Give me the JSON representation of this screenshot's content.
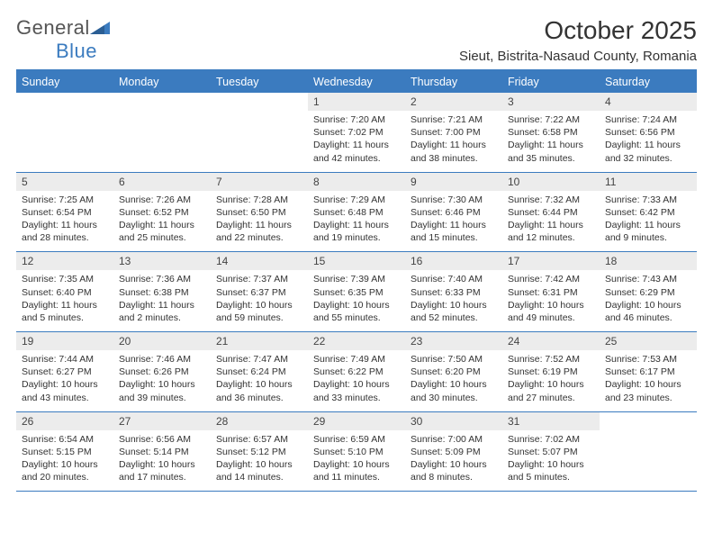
{
  "logo": {
    "word1": "General",
    "word2": "Blue"
  },
  "title": "October 2025",
  "subtitle": "Sieut, Bistrita-Nasaud County, Romania",
  "colors": {
    "accent": "#3b7bbf",
    "header_bg": "#3b7bbf",
    "header_text": "#ffffff",
    "daynum_bg": "#ececec",
    "body_text": "#333333",
    "background": "#ffffff"
  },
  "weekdays": [
    "Sunday",
    "Monday",
    "Tuesday",
    "Wednesday",
    "Thursday",
    "Friday",
    "Saturday"
  ],
  "weeks": [
    [
      null,
      null,
      null,
      {
        "n": "1",
        "sr": "7:20 AM",
        "ss": "7:02 PM",
        "dl": "11 hours and 42 minutes."
      },
      {
        "n": "2",
        "sr": "7:21 AM",
        "ss": "7:00 PM",
        "dl": "11 hours and 38 minutes."
      },
      {
        "n": "3",
        "sr": "7:22 AM",
        "ss": "6:58 PM",
        "dl": "11 hours and 35 minutes."
      },
      {
        "n": "4",
        "sr": "7:24 AM",
        "ss": "6:56 PM",
        "dl": "11 hours and 32 minutes."
      }
    ],
    [
      {
        "n": "5",
        "sr": "7:25 AM",
        "ss": "6:54 PM",
        "dl": "11 hours and 28 minutes."
      },
      {
        "n": "6",
        "sr": "7:26 AM",
        "ss": "6:52 PM",
        "dl": "11 hours and 25 minutes."
      },
      {
        "n": "7",
        "sr": "7:28 AM",
        "ss": "6:50 PM",
        "dl": "11 hours and 22 minutes."
      },
      {
        "n": "8",
        "sr": "7:29 AM",
        "ss": "6:48 PM",
        "dl": "11 hours and 19 minutes."
      },
      {
        "n": "9",
        "sr": "7:30 AM",
        "ss": "6:46 PM",
        "dl": "11 hours and 15 minutes."
      },
      {
        "n": "10",
        "sr": "7:32 AM",
        "ss": "6:44 PM",
        "dl": "11 hours and 12 minutes."
      },
      {
        "n": "11",
        "sr": "7:33 AM",
        "ss": "6:42 PM",
        "dl": "11 hours and 9 minutes."
      }
    ],
    [
      {
        "n": "12",
        "sr": "7:35 AM",
        "ss": "6:40 PM",
        "dl": "11 hours and 5 minutes."
      },
      {
        "n": "13",
        "sr": "7:36 AM",
        "ss": "6:38 PM",
        "dl": "11 hours and 2 minutes."
      },
      {
        "n": "14",
        "sr": "7:37 AM",
        "ss": "6:37 PM",
        "dl": "10 hours and 59 minutes."
      },
      {
        "n": "15",
        "sr": "7:39 AM",
        "ss": "6:35 PM",
        "dl": "10 hours and 55 minutes."
      },
      {
        "n": "16",
        "sr": "7:40 AM",
        "ss": "6:33 PM",
        "dl": "10 hours and 52 minutes."
      },
      {
        "n": "17",
        "sr": "7:42 AM",
        "ss": "6:31 PM",
        "dl": "10 hours and 49 minutes."
      },
      {
        "n": "18",
        "sr": "7:43 AM",
        "ss": "6:29 PM",
        "dl": "10 hours and 46 minutes."
      }
    ],
    [
      {
        "n": "19",
        "sr": "7:44 AM",
        "ss": "6:27 PM",
        "dl": "10 hours and 43 minutes."
      },
      {
        "n": "20",
        "sr": "7:46 AM",
        "ss": "6:26 PM",
        "dl": "10 hours and 39 minutes."
      },
      {
        "n": "21",
        "sr": "7:47 AM",
        "ss": "6:24 PM",
        "dl": "10 hours and 36 minutes."
      },
      {
        "n": "22",
        "sr": "7:49 AM",
        "ss": "6:22 PM",
        "dl": "10 hours and 33 minutes."
      },
      {
        "n": "23",
        "sr": "7:50 AM",
        "ss": "6:20 PM",
        "dl": "10 hours and 30 minutes."
      },
      {
        "n": "24",
        "sr": "7:52 AM",
        "ss": "6:19 PM",
        "dl": "10 hours and 27 minutes."
      },
      {
        "n": "25",
        "sr": "7:53 AM",
        "ss": "6:17 PM",
        "dl": "10 hours and 23 minutes."
      }
    ],
    [
      {
        "n": "26",
        "sr": "6:54 AM",
        "ss": "5:15 PM",
        "dl": "10 hours and 20 minutes."
      },
      {
        "n": "27",
        "sr": "6:56 AM",
        "ss": "5:14 PM",
        "dl": "10 hours and 17 minutes."
      },
      {
        "n": "28",
        "sr": "6:57 AM",
        "ss": "5:12 PM",
        "dl": "10 hours and 14 minutes."
      },
      {
        "n": "29",
        "sr": "6:59 AM",
        "ss": "5:10 PM",
        "dl": "10 hours and 11 minutes."
      },
      {
        "n": "30",
        "sr": "7:00 AM",
        "ss": "5:09 PM",
        "dl": "10 hours and 8 minutes."
      },
      {
        "n": "31",
        "sr": "7:02 AM",
        "ss": "5:07 PM",
        "dl": "10 hours and 5 minutes."
      },
      null
    ]
  ],
  "labels": {
    "sunrise": "Sunrise:",
    "sunset": "Sunset:",
    "daylight": "Daylight:"
  }
}
